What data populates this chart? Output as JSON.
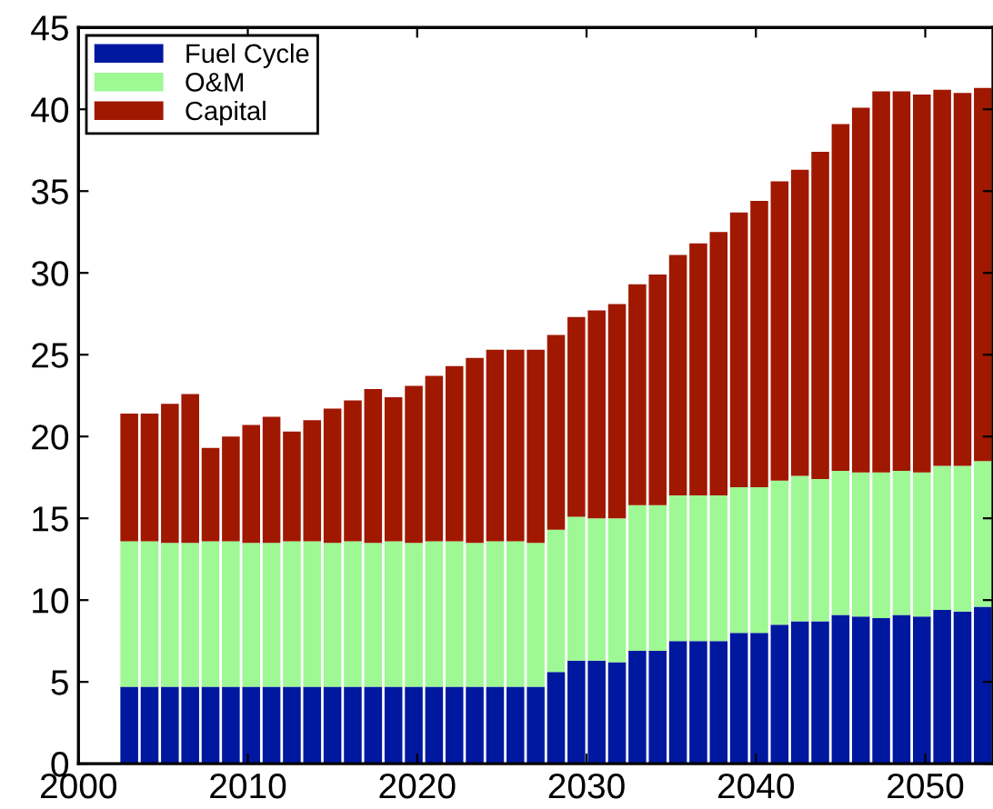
{
  "chart_data": {
    "type": "bar",
    "stacked": true,
    "x": [
      2003.0,
      2004.2,
      2005.4,
      2006.6,
      2007.8,
      2009.0,
      2010.2,
      2011.4,
      2012.6,
      2013.8,
      2015.0,
      2016.2,
      2017.4,
      2018.6,
      2019.8,
      2021.0,
      2022.2,
      2023.4,
      2024.6,
      2025.8,
      2027.0,
      2028.2,
      2029.4,
      2030.6,
      2031.8,
      2033.0,
      2034.2,
      2035.4,
      2036.6,
      2037.8,
      2039.0,
      2040.2,
      2041.4,
      2042.6,
      2043.8,
      2045.0,
      2046.2,
      2047.4,
      2048.6,
      2049.8,
      2051.0,
      2052.2,
      2053.4
    ],
    "series": [
      {
        "name": "Fuel Cycle",
        "color": "#0018a0",
        "values": [
          4.7,
          4.7,
          4.7,
          4.7,
          4.7,
          4.7,
          4.7,
          4.7,
          4.7,
          4.7,
          4.7,
          4.7,
          4.7,
          4.7,
          4.7,
          4.7,
          4.7,
          4.7,
          4.7,
          4.7,
          4.7,
          5.6,
          6.3,
          6.3,
          6.2,
          6.9,
          6.9,
          7.5,
          7.5,
          7.5,
          8.0,
          8.0,
          8.5,
          8.7,
          8.7,
          9.1,
          9.0,
          8.9,
          9.1,
          9.0,
          9.4,
          9.3,
          9.6
        ]
      },
      {
        "name": "O&M",
        "color": "#9ef894",
        "values": [
          8.9,
          8.9,
          8.8,
          8.8,
          8.9,
          8.9,
          8.8,
          8.8,
          8.9,
          8.9,
          8.8,
          8.9,
          8.8,
          8.9,
          8.8,
          8.9,
          8.9,
          8.8,
          8.9,
          8.9,
          8.8,
          8.7,
          8.8,
          8.7,
          8.8,
          8.9,
          8.9,
          8.9,
          8.9,
          8.9,
          8.9,
          8.9,
          8.8,
          8.9,
          8.7,
          8.8,
          8.8,
          8.9,
          8.8,
          8.8,
          8.8,
          8.9,
          8.9
        ]
      },
      {
        "name": "Capital",
        "color": "#a01800",
        "values": [
          7.8,
          7.8,
          8.5,
          9.1,
          5.7,
          6.4,
          7.2,
          7.7,
          6.7,
          7.4,
          8.2,
          8.6,
          9.4,
          8.8,
          9.6,
          10.1,
          10.7,
          11.3,
          11.7,
          11.7,
          11.8,
          11.9,
          12.2,
          12.7,
          13.1,
          13.5,
          14.1,
          14.7,
          15.4,
          16.1,
          16.8,
          17.5,
          18.3,
          18.7,
          20.0,
          21.2,
          22.3,
          23.3,
          23.2,
          23.1,
          23.0,
          22.8,
          22.8
        ]
      }
    ],
    "xlim": [
      2000,
      2054
    ],
    "xticks": [
      2000,
      2010,
      2020,
      2030,
      2040,
      2050
    ],
    "ylim": [
      0,
      45
    ],
    "yticks": [
      0,
      5,
      10,
      15,
      20,
      25,
      30,
      35,
      40,
      45
    ],
    "legend": "top left",
    "grid": false
  }
}
